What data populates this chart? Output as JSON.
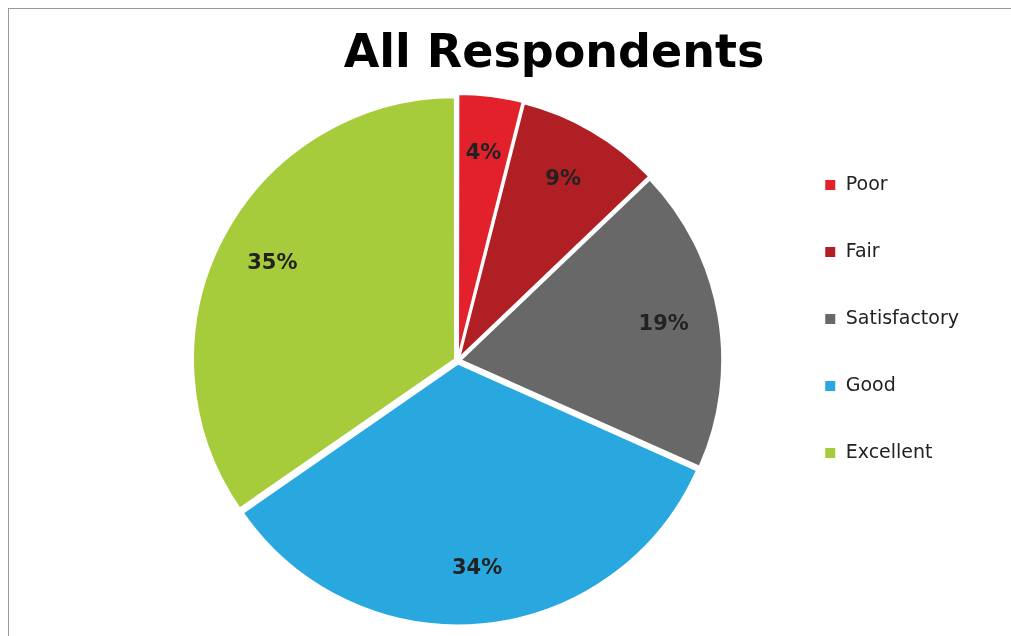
{
  "chart_data": {
    "type": "pie",
    "title": "All Respondents",
    "categories": [
      "Poor",
      "Fair",
      "Satisfactory",
      "Good",
      "Excellent"
    ],
    "values": [
      4,
      9,
      19,
      34,
      35
    ],
    "value_labels": [
      "4%",
      "9%",
      "19%",
      "34%",
      "35%"
    ],
    "colors": [
      "#e3212a",
      "#b01f24",
      "#686868",
      "#29a8e0",
      "#a6cb3b"
    ],
    "legend": "right"
  }
}
